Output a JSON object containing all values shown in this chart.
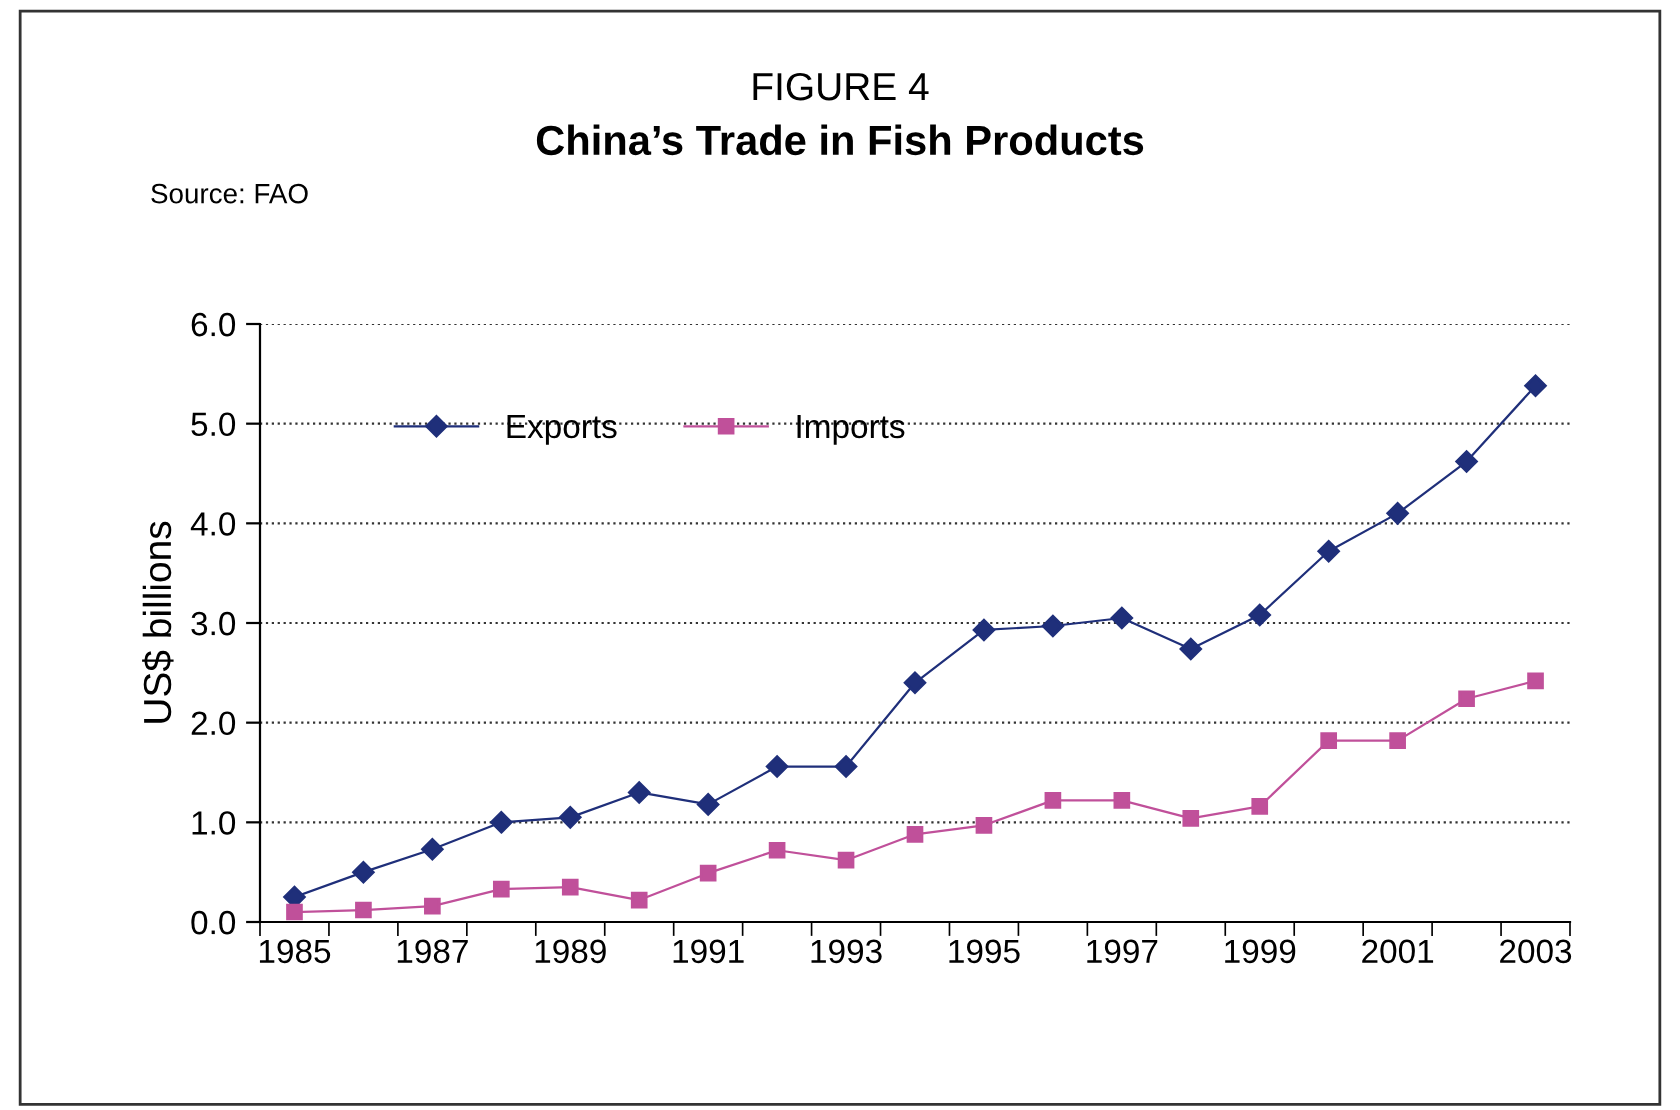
{
  "chart_data": {
    "type": "line",
    "title": "FIGURE 4",
    "subtitle": "China’s Trade in Fish Products",
    "annotations": [
      "Source: FAO"
    ],
    "ylabel": "US$ billions",
    "categories": [
      "1985",
      null,
      "1987",
      null,
      "1989",
      null,
      "1991",
      null,
      "1993",
      null,
      "1995",
      null,
      "1997",
      null,
      "1999",
      null,
      "2001",
      null,
      "2003"
    ],
    "series": [
      {
        "name": "Exports",
        "color": "#1f2f7a",
        "marker": "diamond",
        "values": [
          0.25,
          0.5,
          0.73,
          1.0,
          1.05,
          1.3,
          1.18,
          1.56,
          1.56,
          2.4,
          2.93,
          2.97,
          3.05,
          2.74,
          3.08,
          3.72,
          4.1,
          4.62,
          5.38
        ]
      },
      {
        "name": "Imports",
        "color": "#c0509a",
        "marker": "square",
        "values": [
          0.1,
          0.12,
          0.16,
          0.33,
          0.35,
          0.22,
          0.49,
          0.72,
          0.62,
          0.88,
          0.97,
          1.22,
          1.22,
          1.04,
          1.16,
          1.82,
          1.82,
          2.24,
          2.42
        ]
      }
    ],
    "ylim": [
      0,
      6
    ],
    "yticks": [
      {
        "value": 0,
        "label": "0.0"
      },
      {
        "value": 1,
        "label": "1.0"
      },
      {
        "value": 2,
        "label": "2.0"
      },
      {
        "value": 3,
        "label": "3.0"
      },
      {
        "value": 4,
        "label": "4.0"
      },
      {
        "value": 5,
        "label": "5.0"
      },
      {
        "value": 6,
        "label": "6.0"
      }
    ],
    "grid": "y",
    "legend": "top left",
    "line_style": "solid"
  }
}
